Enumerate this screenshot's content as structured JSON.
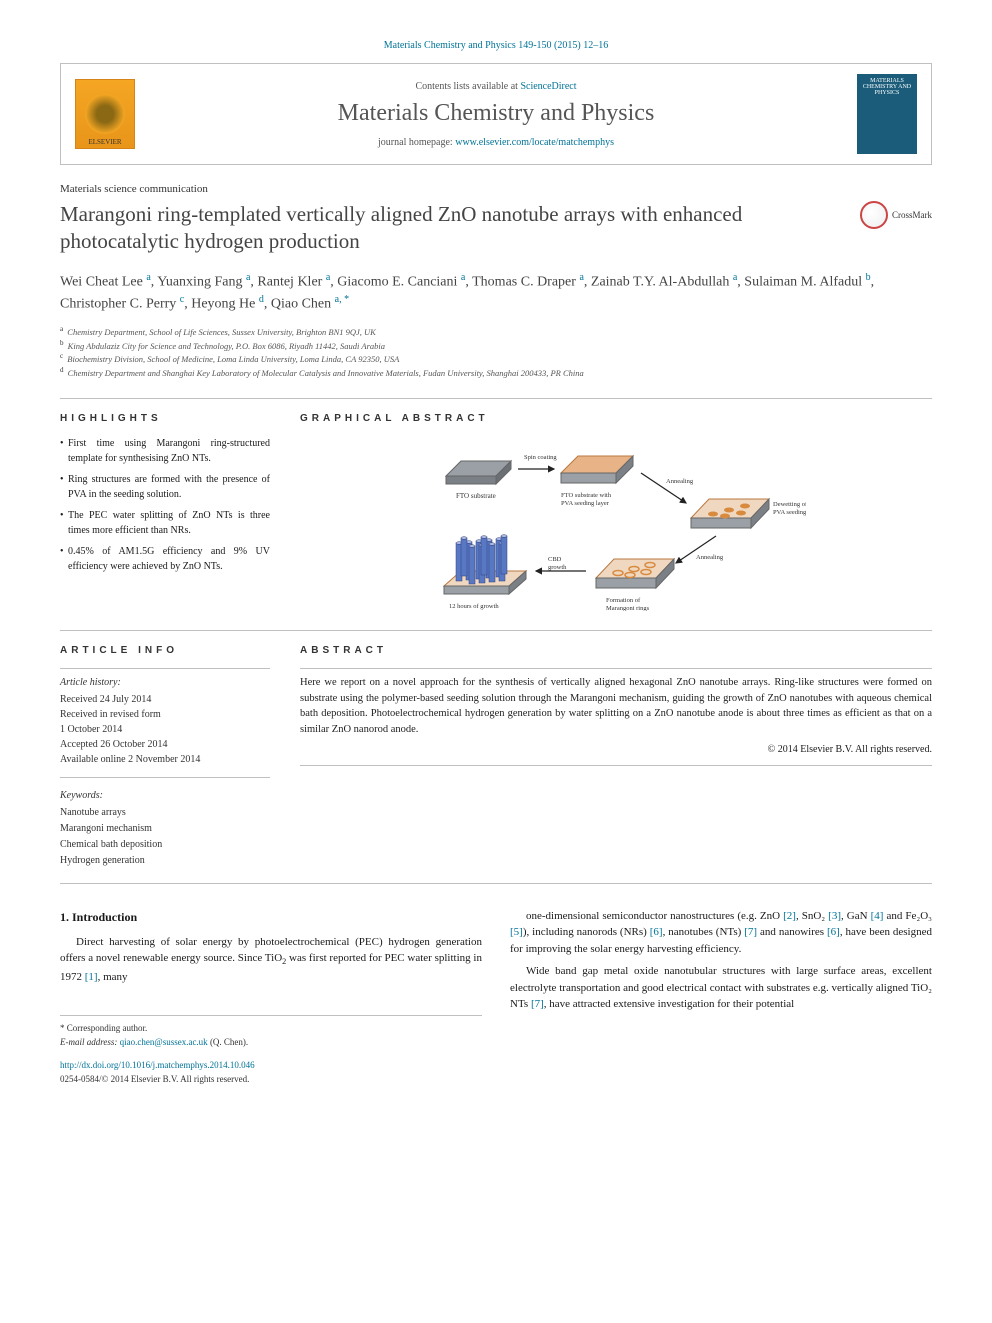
{
  "citation": "Materials Chemistry and Physics 149-150 (2015) 12–16",
  "journal_box": {
    "contents_prefix": "Contents lists available at ",
    "contents_link": "ScienceDirect",
    "journal_name": "Materials Chemistry and Physics",
    "homepage_prefix": "journal homepage: ",
    "homepage_link": "www.elsevier.com/locate/matchemphys",
    "elsevier_label": "ELSEVIER",
    "cover_text": "MATERIALS CHEMISTRY AND PHYSICS"
  },
  "article_type": "Materials science communication",
  "title": "Marangoni ring-templated vertically aligned ZnO nanotube arrays with enhanced photocatalytic hydrogen production",
  "crossmark_label": "CrossMark",
  "authors_html": "Wei Cheat Lee <sup>a</sup>, Yuanxing Fang <sup>a</sup>, Rantej Kler <sup>a</sup>, Giacomo E. Canciani <sup>a</sup>, Thomas C. Draper <sup>a</sup>, Zainab T.Y. Al-Abdullah <sup>a</sup>, Sulaiman M. Alfadul <sup>b</sup>, Christopher C. Perry <sup>c</sup>, Heyong He <sup>d</sup>, Qiao Chen <sup>a, *</sup>",
  "affiliations": [
    {
      "sup": "a",
      "text": "Chemistry Department, School of Life Sciences, Sussex University, Brighton BN1 9QJ, UK"
    },
    {
      "sup": "b",
      "text": "King Abdulaziz City for Science and Technology, P.O. Box 6086, Riyadh 11442, Saudi Arabia"
    },
    {
      "sup": "c",
      "text": "Biochemistry Division, School of Medicine, Loma Linda University, Loma Linda, CA 92350, USA"
    },
    {
      "sup": "d",
      "text": "Chemistry Department and Shanghai Key Laboratory of Molecular Catalysis and Innovative Materials, Fudan University, Shanghai 200433, PR China"
    }
  ],
  "highlights": {
    "label": "HIGHLIGHTS",
    "items": [
      "First time using Marangoni ring-structured template for synthesising ZnO NTs.",
      "Ring structures are formed with the presence of PVA in the seeding solution.",
      "The PEC water splitting of ZnO NTs is three times more efficient than NRs.",
      "0.45% of AM1.5G efficiency and 9% UV efficiency were achieved by ZnO NTs."
    ]
  },
  "graphical_abstract": {
    "label": "GRAPHICAL ABSTRACT",
    "steps": {
      "fto_substrate": "FTO substrate",
      "spin_coating": "Spin coating",
      "fto_pva": "FTO substrate with PVA seeding layer",
      "annealing1": "Annealing",
      "dewetting": "Dewetting of PVA seeding layer",
      "annealing2": "Annealing",
      "marangoni": "Formation of Marangoni rings",
      "cbd": "CBD growth",
      "growth": "12 hours of growth"
    },
    "colors": {
      "fto": "#9aa0a6",
      "pva_layer": "#e8b487",
      "ring_fill": "#d88a3f",
      "tube_fill": "#5978c4",
      "tube_stroke": "#2d3f7a",
      "arrow": "#222222"
    }
  },
  "article_info": {
    "label": "ARTICLE INFO",
    "history_label": "Article history:",
    "history": [
      "Received 24 July 2014",
      "Received in revised form",
      "1 October 2014",
      "Accepted 26 October 2014",
      "Available online 2 November 2014"
    ],
    "keywords_label": "Keywords:",
    "keywords": [
      "Nanotube arrays",
      "Marangoni mechanism",
      "Chemical bath deposition",
      "Hydrogen generation"
    ]
  },
  "abstract": {
    "label": "ABSTRACT",
    "text": "Here we report on a novel approach for the synthesis of vertically aligned hexagonal ZnO nanotube arrays. Ring-like structures were formed on substrate using the polymer-based seeding solution through the Marangoni mechanism, guiding the growth of ZnO nanotubes with aqueous chemical bath deposition. Photoelectrochemical hydrogen generation by water splitting on a ZnO nanotube anode is about three times as efficient as that on a similar ZnO nanorod anode.",
    "copyright": "© 2014 Elsevier B.V. All rights reserved."
  },
  "body": {
    "section_heading": "1. Introduction",
    "col1_para1_pre": "Direct harvesting of solar energy by photoelectrochemical (PEC) hydrogen generation offers a novel renewable energy source. Since TiO",
    "col1_para1_post": " was first reported for PEC water splitting in 1972 ",
    "col1_para1_ref": "[1]",
    "col1_para1_tail": ", many",
    "col2_para1": "one-dimensional semiconductor nanostructures (e.g. ZnO [2], SnO₂ [3], GaN [4] and Fe₂O₃ [5]), including nanorods (NRs) [6], nanotubes (NTs) [7] and nanowires [6], have been designed for improving the solar energy harvesting efficiency.",
    "col2_para2": "Wide band gap metal oxide nanotubular structures with large surface areas, excellent electrolyte transportation and good electrical contact with substrates e.g. vertically aligned TiO₂ NTs [7], have attracted extensive investigation for their potential",
    "refs_col2": {
      "r2": "[2]",
      "r3": "[3]",
      "r4": "[4]",
      "r5": "[5]",
      "r6": "[6]",
      "r7": "[7]"
    }
  },
  "footer": {
    "corr_label": "* Corresponding author.",
    "email_label": "E-mail address: ",
    "email": "qiao.chen@sussex.ac.uk",
    "email_name": " (Q. Chen).",
    "doi": "http://dx.doi.org/10.1016/j.matchemphys.2014.10.046",
    "issn_copyright": "0254-0584/© 2014 Elsevier B.V. All rights reserved."
  }
}
